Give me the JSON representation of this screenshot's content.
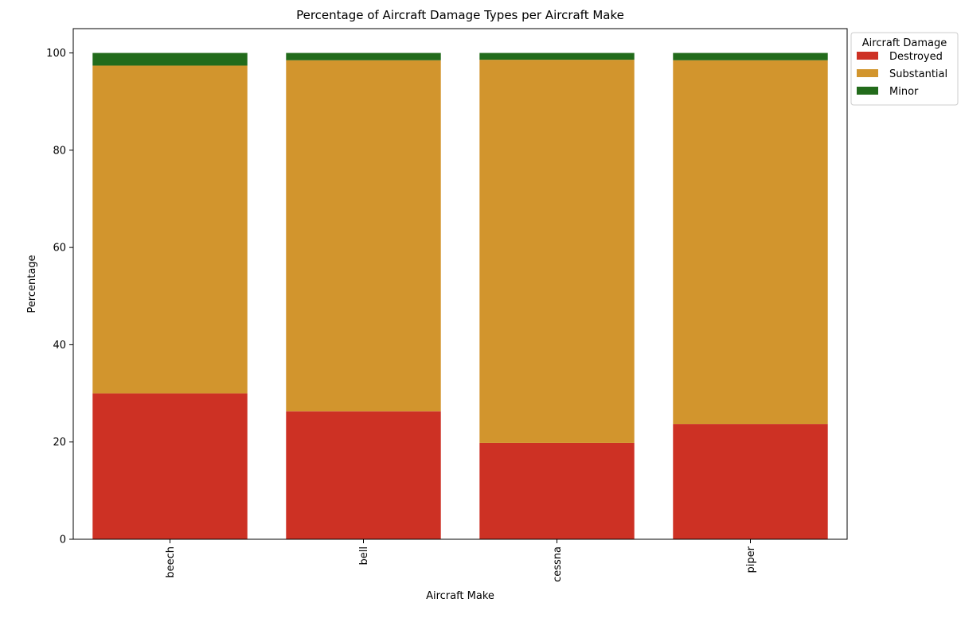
{
  "chart_data": {
    "type": "bar",
    "stacked": true,
    "title": "Percentage of Aircraft Damage Types per Aircraft Make",
    "xlabel": "Aircraft Make",
    "ylabel": "Percentage",
    "ylim": [
      0,
      105
    ],
    "yticks": [
      0,
      20,
      40,
      60,
      80,
      100
    ],
    "categories": [
      "beech",
      "bell",
      "cessna",
      "piper"
    ],
    "series": [
      {
        "name": "Destroyed",
        "color": "#cd3124",
        "values": [
          30.0,
          26.3,
          19.8,
          23.7
        ]
      },
      {
        "name": "Substantial",
        "color": "#d2952d",
        "values": [
          67.4,
          72.2,
          78.8,
          74.8
        ]
      },
      {
        "name": "Minor",
        "color": "#226b1b",
        "values": [
          2.6,
          1.5,
          1.4,
          1.5
        ]
      }
    ],
    "legend": {
      "title": "Aircraft Damage",
      "placement": "outside top-right"
    },
    "grid": false
  }
}
